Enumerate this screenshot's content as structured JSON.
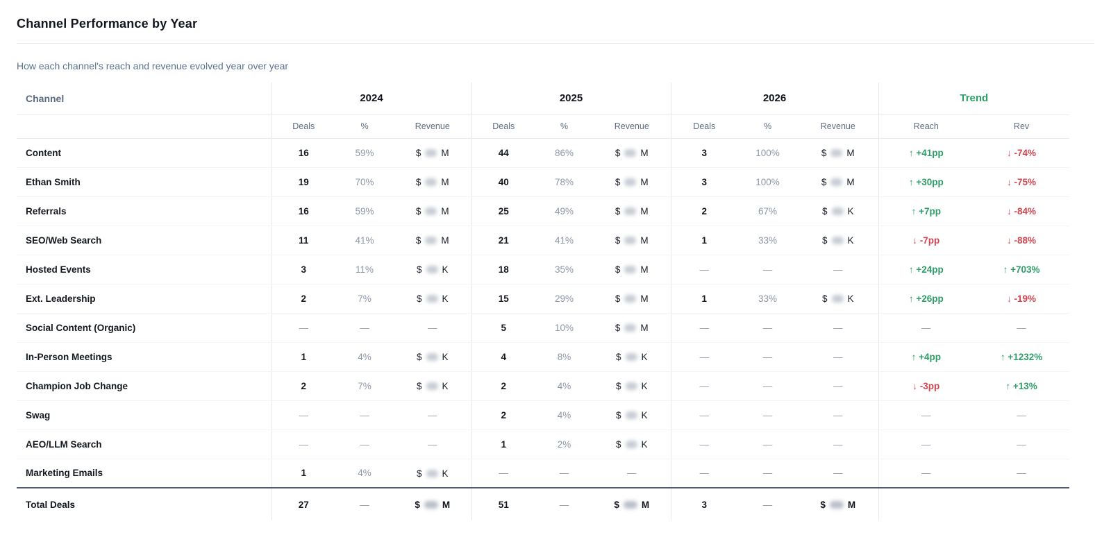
{
  "header": {
    "title": "Channel Performance by Year",
    "subtitle": "How each channel's reach and revenue evolved year over year"
  },
  "colors": {
    "positive": "#2e9d68",
    "negative": "#d5454f",
    "trend_header": "#2e9d68"
  },
  "table": {
    "channel_header": "Channel",
    "year_groups": [
      "2024",
      "2025",
      "2026"
    ],
    "trend_header": "Trend",
    "year_subcols": [
      "Deals",
      "%",
      "Revenue"
    ],
    "trend_subcols": [
      "Reach",
      "Rev"
    ],
    "dash": "—",
    "revenue_prefix": "$",
    "revenue_redacted": true,
    "rows": [
      {
        "channel": "Content",
        "cells": [
          {
            "deals": "16",
            "pct": "59%",
            "rev_unit": "M"
          },
          {
            "deals": "44",
            "pct": "86%",
            "rev_unit": "M"
          },
          {
            "deals": "3",
            "pct": "100%",
            "rev_unit": "M"
          }
        ],
        "trend": {
          "reach": {
            "arrow": "up",
            "text": "+41pp"
          },
          "rev": {
            "arrow": "down",
            "text": "-74%"
          }
        }
      },
      {
        "channel": "Ethan Smith",
        "cells": [
          {
            "deals": "19",
            "pct": "70%",
            "rev_unit": "M"
          },
          {
            "deals": "40",
            "pct": "78%",
            "rev_unit": "M"
          },
          {
            "deals": "3",
            "pct": "100%",
            "rev_unit": "M"
          }
        ],
        "trend": {
          "reach": {
            "arrow": "up",
            "text": "+30pp"
          },
          "rev": {
            "arrow": "down",
            "text": "-75%"
          }
        }
      },
      {
        "channel": "Referrals",
        "cells": [
          {
            "deals": "16",
            "pct": "59%",
            "rev_unit": "M"
          },
          {
            "deals": "25",
            "pct": "49%",
            "rev_unit": "M"
          },
          {
            "deals": "2",
            "pct": "67%",
            "rev_unit": "K"
          }
        ],
        "trend": {
          "reach": {
            "arrow": "up",
            "text": "+7pp"
          },
          "rev": {
            "arrow": "down",
            "text": "-84%"
          }
        }
      },
      {
        "channel": "SEO/Web Search",
        "cells": [
          {
            "deals": "11",
            "pct": "41%",
            "rev_unit": "M"
          },
          {
            "deals": "21",
            "pct": "41%",
            "rev_unit": "M"
          },
          {
            "deals": "1",
            "pct": "33%",
            "rev_unit": "K"
          }
        ],
        "trend": {
          "reach": {
            "arrow": "down",
            "text": "-7pp"
          },
          "rev": {
            "arrow": "down",
            "text": "-88%"
          }
        }
      },
      {
        "channel": "Hosted Events",
        "cells": [
          {
            "deals": "3",
            "pct": "11%",
            "rev_unit": "K"
          },
          {
            "deals": "18",
            "pct": "35%",
            "rev_unit": "M"
          },
          null
        ],
        "trend": {
          "reach": {
            "arrow": "up",
            "text": "+24pp"
          },
          "rev": {
            "arrow": "up",
            "text": "+703%"
          }
        }
      },
      {
        "channel": "Ext. Leadership",
        "cells": [
          {
            "deals": "2",
            "pct": "7%",
            "rev_unit": "K"
          },
          {
            "deals": "15",
            "pct": "29%",
            "rev_unit": "M"
          },
          {
            "deals": "1",
            "pct": "33%",
            "rev_unit": "K"
          }
        ],
        "trend": {
          "reach": {
            "arrow": "up",
            "text": "+26pp"
          },
          "rev": {
            "arrow": "down",
            "text": "-19%"
          }
        }
      },
      {
        "channel": "Social Content (Organic)",
        "cells": [
          null,
          {
            "deals": "5",
            "pct": "10%",
            "rev_unit": "M"
          },
          null
        ],
        "trend": null
      },
      {
        "channel": "In-Person Meetings",
        "cells": [
          {
            "deals": "1",
            "pct": "4%",
            "rev_unit": "K"
          },
          {
            "deals": "4",
            "pct": "8%",
            "rev_unit": "K"
          },
          null
        ],
        "trend": {
          "reach": {
            "arrow": "up",
            "text": "+4pp"
          },
          "rev": {
            "arrow": "up",
            "text": "+1232%"
          }
        }
      },
      {
        "channel": "Champion Job Change",
        "cells": [
          {
            "deals": "2",
            "pct": "7%",
            "rev_unit": "K"
          },
          {
            "deals": "2",
            "pct": "4%",
            "rev_unit": "K"
          },
          null
        ],
        "trend": {
          "reach": {
            "arrow": "down",
            "text": "-3pp"
          },
          "rev": {
            "arrow": "up",
            "text": "+13%"
          }
        }
      },
      {
        "channel": "Swag",
        "cells": [
          null,
          {
            "deals": "2",
            "pct": "4%",
            "rev_unit": "K"
          },
          null
        ],
        "trend": null
      },
      {
        "channel": "AEO/LLM Search",
        "cells": [
          null,
          {
            "deals": "1",
            "pct": "2%",
            "rev_unit": "K"
          },
          null
        ],
        "trend": null
      },
      {
        "channel": "Marketing Emails",
        "cells": [
          {
            "deals": "1",
            "pct": "4%",
            "rev_unit": "K"
          },
          null,
          null
        ],
        "trend": null
      }
    ],
    "total": {
      "label": "Total Deals",
      "cells": [
        {
          "deals": "27",
          "pct": "—",
          "rev_unit": "M"
        },
        {
          "deals": "51",
          "pct": "—",
          "rev_unit": "M"
        },
        {
          "deals": "3",
          "pct": "—",
          "rev_unit": "M"
        }
      ]
    }
  }
}
